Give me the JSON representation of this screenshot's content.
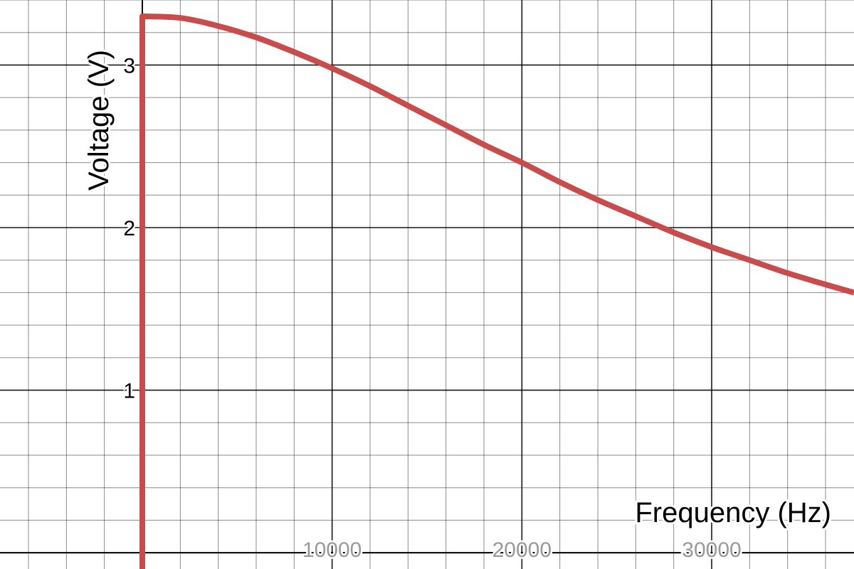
{
  "chart_data": {
    "type": "line",
    "title": "",
    "xlabel": "Frequency (Hz)",
    "ylabel": "Voltage (V)",
    "xlim": [
      -7500,
      37500
    ],
    "ylim": [
      -0.1,
      3.4
    ],
    "x_ticks": [
      10000,
      20000,
      30000
    ],
    "x_tick_labels": [
      "10000",
      "20000",
      "30000"
    ],
    "y_ticks": [
      1,
      2,
      3
    ],
    "y_tick_labels": [
      "1",
      "2",
      "3"
    ],
    "grid": true,
    "minor_x_step": 2000,
    "major_x_step": 10000,
    "minor_y_step": 0.2,
    "major_y_step": 1,
    "series": [
      {
        "color": "#c94c4c",
        "x": [
          0,
          0,
          2000,
          4000,
          6000,
          8000,
          10000,
          12000,
          14000,
          16000,
          18000,
          20000,
          22000,
          24000,
          26000,
          28000,
          30000,
          32000,
          34000,
          36000,
          37500
        ],
        "y": [
          -0.1,
          3.3,
          3.29,
          3.24,
          3.17,
          3.08,
          2.98,
          2.87,
          2.75,
          2.63,
          2.51,
          2.4,
          2.28,
          2.17,
          2.07,
          1.97,
          1.88,
          1.8,
          1.72,
          1.65,
          1.6
        ]
      }
    ]
  }
}
